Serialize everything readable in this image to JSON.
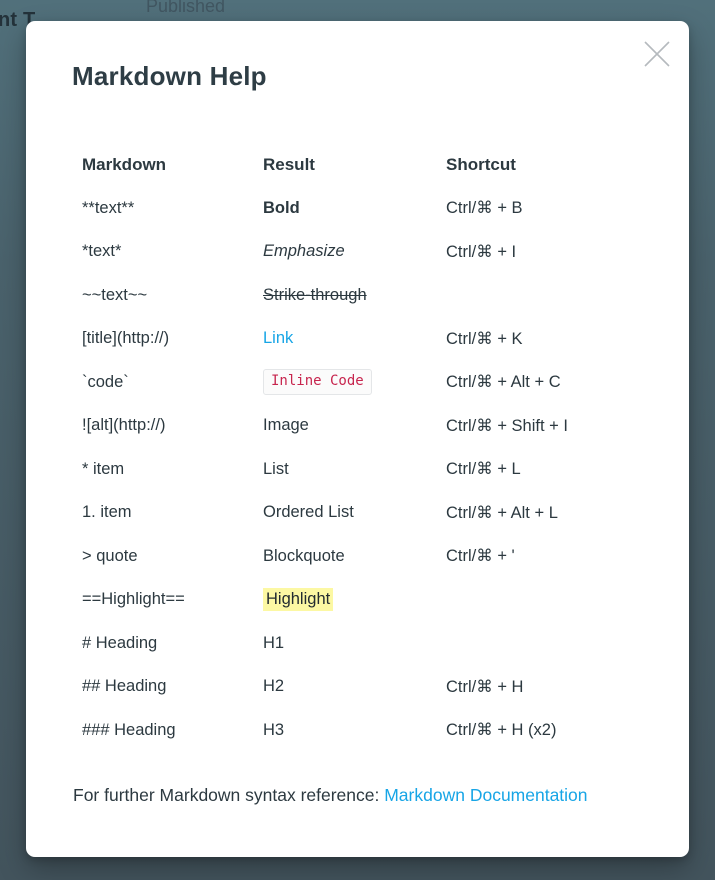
{
  "background": {
    "partial_heading": "nt T",
    "published_label": "Published"
  },
  "modal": {
    "title": "Markdown Help",
    "close_icon": "close-icon",
    "table": {
      "headers": [
        "Markdown",
        "Result",
        "Shortcut"
      ],
      "rows": [
        {
          "markdown": "**text**",
          "result": "Bold",
          "result_style": "bold",
          "shortcut": "Ctrl/⌘ + B"
        },
        {
          "markdown": "*text*",
          "result": "Emphasize",
          "result_style": "italic",
          "shortcut": "Ctrl/⌘ + I"
        },
        {
          "markdown": "~~text~~",
          "result": "Strike-through",
          "result_style": "strike",
          "shortcut": ""
        },
        {
          "markdown": "[title](http://)",
          "result": "Link",
          "result_style": "link",
          "shortcut": "Ctrl/⌘ + K"
        },
        {
          "markdown": "`code`",
          "result": "Inline Code",
          "result_style": "code",
          "shortcut": "Ctrl/⌘ + Alt + C"
        },
        {
          "markdown": "![alt](http://)",
          "result": "Image",
          "result_style": "plain",
          "shortcut": "Ctrl/⌘ + Shift + I"
        },
        {
          "markdown": "* item",
          "result": "List",
          "result_style": "plain",
          "shortcut": "Ctrl/⌘ + L"
        },
        {
          "markdown": "1. item",
          "result": "Ordered List",
          "result_style": "plain",
          "shortcut": "Ctrl/⌘ + Alt + L"
        },
        {
          "markdown": "> quote",
          "result": "Blockquote",
          "result_style": "plain",
          "shortcut": "Ctrl/⌘ + '"
        },
        {
          "markdown": "==Highlight==",
          "result": "Highlight",
          "result_style": "highlight",
          "shortcut": ""
        },
        {
          "markdown": "# Heading",
          "result": "H1",
          "result_style": "plain",
          "shortcut": ""
        },
        {
          "markdown": "## Heading",
          "result": "H2",
          "result_style": "plain",
          "shortcut": "Ctrl/⌘ + H"
        },
        {
          "markdown": "### Heading",
          "result": "H3",
          "result_style": "plain",
          "shortcut": "Ctrl/⌘ + H (x2)"
        }
      ]
    },
    "footer": {
      "text": "For further Markdown syntax reference: ",
      "link_label": "Markdown Documentation"
    }
  },
  "colors": {
    "overlay_top": "#51707b",
    "overlay_bottom": "#43545d",
    "text": "#2c3940",
    "link": "#17a5e6",
    "code_text": "#c7254e",
    "code_background": "#fbfbfb",
    "code_border": "#e4e6e8",
    "highlight_background": "#fcf8a3",
    "close_icon": "#b5babe"
  }
}
